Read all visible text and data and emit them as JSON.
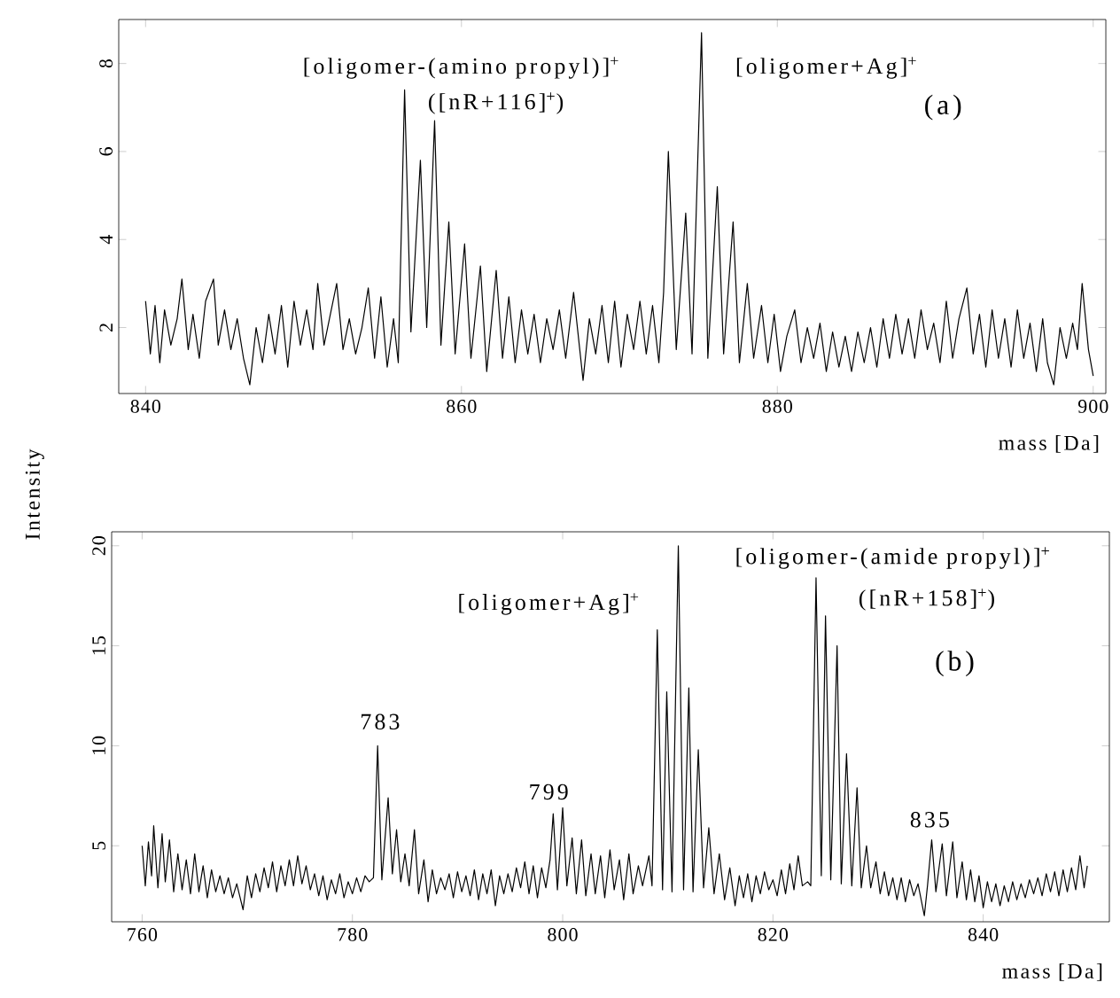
{
  "chart_data": [
    {
      "type": "line",
      "xlabel": "mass [Da]",
      "ylabel": "Intensity",
      "xlim": [
        838.3,
        900.8
      ],
      "ylim": [
        0.5,
        9
      ],
      "xticks": [
        840,
        860,
        880,
        900
      ],
      "yticks": [
        2,
        4,
        6,
        8
      ],
      "annotations": [
        "[oligomer-(amino propyl)]$^{+}$",
        "([nR+116]$^{+}$)",
        "[oligomer+Ag]$^{+}$",
        "(a)"
      ],
      "series": [
        {
          "color": "#000000",
          "x": [
            840.0,
            840.3,
            840.6,
            840.9,
            841.2,
            841.6,
            842.0,
            842.3,
            842.7,
            843.0,
            843.4,
            843.8,
            844.3,
            844.6,
            845.0,
            845.4,
            845.8,
            846.2,
            846.6,
            847.0,
            847.4,
            847.8,
            848.2,
            848.6,
            849.0,
            849.4,
            849.8,
            850.2,
            850.6,
            850.9,
            851.3,
            851.7,
            852.1,
            852.5,
            852.9,
            853.3,
            853.7,
            854.1,
            854.5,
            854.9,
            855.3,
            855.7,
            856.0,
            856.4,
            856.8,
            857.4,
            857.8,
            858.3,
            858.7,
            859.2,
            859.6,
            860.2,
            860.6,
            861.2,
            861.6,
            862.2,
            862.6,
            863.0,
            863.4,
            863.8,
            864.2,
            864.6,
            865.0,
            865.4,
            865.8,
            866.2,
            866.6,
            867.1,
            867.7,
            868.1,
            868.5,
            868.9,
            869.3,
            869.7,
            870.1,
            870.5,
            870.9,
            871.3,
            871.7,
            872.1,
            872.5,
            872.8,
            873.1,
            873.6,
            874.2,
            874.6,
            875.2,
            875.6,
            876.2,
            876.6,
            877.2,
            877.6,
            878.1,
            878.5,
            879.0,
            879.4,
            879.8,
            880.2,
            880.6,
            881.1,
            881.5,
            881.9,
            882.3,
            882.7,
            883.1,
            883.5,
            883.9,
            884.3,
            884.7,
            885.1,
            885.5,
            885.9,
            886.3,
            886.7,
            887.1,
            887.5,
            887.9,
            888.3,
            888.7,
            889.1,
            889.5,
            889.9,
            890.3,
            890.7,
            891.1,
            891.5,
            892.0,
            892.4,
            892.8,
            893.2,
            893.6,
            894.0,
            894.4,
            894.8,
            895.2,
            895.6,
            896.0,
            896.4,
            896.8,
            897.1,
            897.5,
            897.9,
            898.3,
            898.7,
            899.0,
            899.3,
            899.7,
            900.0
          ],
          "values": [
            2.6,
            1.4,
            2.5,
            1.2,
            2.4,
            1.6,
            2.2,
            3.1,
            1.5,
            2.3,
            1.3,
            2.6,
            3.1,
            1.6,
            2.4,
            1.5,
            2.2,
            1.3,
            0.7,
            2.0,
            1.2,
            2.3,
            1.4,
            2.5,
            1.1,
            2.6,
            1.6,
            2.4,
            1.5,
            3.0,
            1.6,
            2.3,
            3.0,
            1.5,
            2.2,
            1.4,
            2.0,
            2.9,
            1.3,
            2.7,
            1.1,
            2.2,
            1.2,
            7.4,
            1.9,
            5.8,
            2.0,
            6.7,
            1.6,
            4.4,
            1.4,
            3.9,
            1.3,
            3.4,
            1.0,
            3.3,
            1.3,
            2.7,
            1.2,
            2.4,
            1.4,
            2.3,
            1.2,
            2.2,
            1.5,
            2.4,
            1.3,
            2.8,
            0.8,
            2.2,
            1.4,
            2.5,
            1.2,
            2.6,
            1.1,
            2.3,
            1.5,
            2.6,
            1.4,
            2.5,
            1.2,
            2.8,
            6.0,
            1.5,
            4.6,
            1.4,
            8.7,
            1.3,
            5.2,
            1.4,
            4.4,
            1.2,
            3.0,
            1.3,
            2.5,
            1.2,
            2.3,
            1.0,
            1.8,
            2.4,
            1.2,
            2.0,
            1.3,
            2.1,
            1.0,
            1.9,
            1.1,
            1.8,
            1.0,
            1.9,
            1.2,
            2.0,
            1.1,
            2.2,
            1.3,
            2.3,
            1.4,
            2.2,
            1.3,
            2.4,
            1.5,
            2.1,
            1.2,
            2.6,
            1.3,
            2.2,
            2.9,
            1.4,
            2.3,
            1.1,
            2.4,
            1.3,
            2.2,
            1.1,
            2.4,
            1.3,
            2.1,
            1.0,
            2.2,
            1.2,
            0.7,
            2.0,
            1.3,
            2.1,
            1.5,
            3.0,
            1.5,
            0.9
          ]
        }
      ]
    },
    {
      "type": "line",
      "xlabel": "mass [Da]",
      "xlim": [
        757.1,
        852
      ],
      "ylim": [
        1.2,
        20.7
      ],
      "xticks": [
        760,
        780,
        800,
        820,
        840
      ],
      "yticks": [
        5,
        10,
        15,
        20
      ],
      "annotations": [
        "[oligomer+Ag]$^{+}$",
        "[oligomer-(amide propyl)]$^{+}$",
        "([nR+158]$^{+}$)",
        "(b)",
        "783",
        "799",
        "835"
      ],
      "series": [
        {
          "color": "#000000",
          "x": [
            760.0,
            760.3,
            760.6,
            760.9,
            761.1,
            761.5,
            761.9,
            762.2,
            762.6,
            763.0,
            763.4,
            763.8,
            764.2,
            764.6,
            765.0,
            765.4,
            765.8,
            766.2,
            766.6,
            767.0,
            767.4,
            767.8,
            768.2,
            768.6,
            769.0,
            769.6,
            770.0,
            770.4,
            770.8,
            771.2,
            771.6,
            772.0,
            772.4,
            772.8,
            773.2,
            773.6,
            774.0,
            774.4,
            774.8,
            775.2,
            775.6,
            776.0,
            776.4,
            776.8,
            777.2,
            777.6,
            778.0,
            778.4,
            778.8,
            779.2,
            779.6,
            780.0,
            780.4,
            780.8,
            781.2,
            781.6,
            782.0,
            782.4,
            782.8,
            783.4,
            783.8,
            784.2,
            784.6,
            785.0,
            785.4,
            785.9,
            786.3,
            786.8,
            787.2,
            787.6,
            788.0,
            788.4,
            788.8,
            789.2,
            789.6,
            790.0,
            790.4,
            790.8,
            791.2,
            791.6,
            792.0,
            792.4,
            792.8,
            793.2,
            793.6,
            794.0,
            794.4,
            794.8,
            795.2,
            795.6,
            796.0,
            796.4,
            796.8,
            797.2,
            797.6,
            798.0,
            798.4,
            798.8,
            799.1,
            799.5,
            800.0,
            800.4,
            800.9,
            801.3,
            801.8,
            802.2,
            802.7,
            803.1,
            803.6,
            804.0,
            804.5,
            804.9,
            805.4,
            805.8,
            806.3,
            806.7,
            807.2,
            807.6,
            808.2,
            808.5,
            809.0,
            809.5,
            809.9,
            810.4,
            811.0,
            811.5,
            812.0,
            812.4,
            812.9,
            813.4,
            813.9,
            814.4,
            814.9,
            815.4,
            815.9,
            816.4,
            816.8,
            817.2,
            817.6,
            818.0,
            818.4,
            818.8,
            819.2,
            819.6,
            820.0,
            820.4,
            820.8,
            821.2,
            821.6,
            822.0,
            822.4,
            822.8,
            823.3,
            823.6,
            824.1,
            824.6,
            825.0,
            825.5,
            826.1,
            826.5,
            827.0,
            827.5,
            828.0,
            828.4,
            828.9,
            829.3,
            829.8,
            830.2,
            830.6,
            831.0,
            831.4,
            831.8,
            832.2,
            832.6,
            833.0,
            833.4,
            833.8,
            834.4,
            834.7,
            835.1,
            835.5,
            836.1,
            836.5,
            837.1,
            837.5,
            838.0,
            838.4,
            838.8,
            839.2,
            839.6,
            840.0,
            840.4,
            840.8,
            841.2,
            841.6,
            842.0,
            842.4,
            842.8,
            843.2,
            843.6,
            844.0,
            844.4,
            844.8,
            845.2,
            845.6,
            846.0,
            846.4,
            846.8,
            847.2,
            847.6,
            848.0,
            848.4,
            848.8,
            849.2,
            849.6,
            849.9
          ],
          "values": [
            5.0,
            3.0,
            5.2,
            3.5,
            6.0,
            2.9,
            5.6,
            3.2,
            5.3,
            2.7,
            4.6,
            2.8,
            4.3,
            2.6,
            4.6,
            2.7,
            4.0,
            2.4,
            3.8,
            2.7,
            3.5,
            2.6,
            3.4,
            2.4,
            3.1,
            1.8,
            3.5,
            2.4,
            3.6,
            2.7,
            3.9,
            2.9,
            4.2,
            2.7,
            4.0,
            3.0,
            4.3,
            3.0,
            4.5,
            3.1,
            4.0,
            2.8,
            3.6,
            2.5,
            3.5,
            2.3,
            3.3,
            2.6,
            3.6,
            2.4,
            3.2,
            2.6,
            3.4,
            2.7,
            3.5,
            3.2,
            3.4,
            10.0,
            3.3,
            7.4,
            3.6,
            5.8,
            3.2,
            4.6,
            3.0,
            5.8,
            2.6,
            4.3,
            2.2,
            3.8,
            2.6,
            3.4,
            2.8,
            3.6,
            2.4,
            3.7,
            2.7,
            3.5,
            2.5,
            3.8,
            2.3,
            3.6,
            2.6,
            3.8,
            2.0,
            3.5,
            2.6,
            3.6,
            2.7,
            3.9,
            2.9,
            4.2,
            2.6,
            4.0,
            2.4,
            3.9,
            2.9,
            4.3,
            6.6,
            2.8,
            6.9,
            3.0,
            5.4,
            2.6,
            5.3,
            2.5,
            4.6,
            2.6,
            4.5,
            2.4,
            4.8,
            2.8,
            4.3,
            2.3,
            4.6,
            2.6,
            4.0,
            3.0,
            4.5,
            3.0,
            15.8,
            2.8,
            12.7,
            2.7,
            20.0,
            2.8,
            12.9,
            2.7,
            9.8,
            2.9,
            5.9,
            2.6,
            4.6,
            2.3,
            3.9,
            2.0,
            3.5,
            2.4,
            3.6,
            2.2,
            3.5,
            2.6,
            3.7,
            2.8,
            3.3,
            2.5,
            3.8,
            2.6,
            4.1,
            2.8,
            4.5,
            3.0,
            3.2,
            3.0,
            18.4,
            3.5,
            16.5,
            3.3,
            15.0,
            3.1,
            9.6,
            3.0,
            7.9,
            2.9,
            5.0,
            2.9,
            4.2,
            2.6,
            3.7,
            2.5,
            3.4,
            2.3,
            3.4,
            2.2,
            3.3,
            2.5,
            3.1,
            1.5,
            3.0,
            5.3,
            2.7,
            5.1,
            2.5,
            5.2,
            2.4,
            4.2,
            2.3,
            3.8,
            2.2,
            3.5,
            1.9,
            3.2,
            2.2,
            3.1,
            2.0,
            3.0,
            2.2,
            3.2,
            2.3,
            3.1,
            2.4,
            3.3,
            2.6,
            3.4,
            2.5,
            3.6,
            2.7,
            3.7,
            2.5,
            3.8,
            2.7,
            3.9,
            2.8,
            4.5,
            2.9,
            4.0
          ]
        }
      ]
    }
  ]
}
